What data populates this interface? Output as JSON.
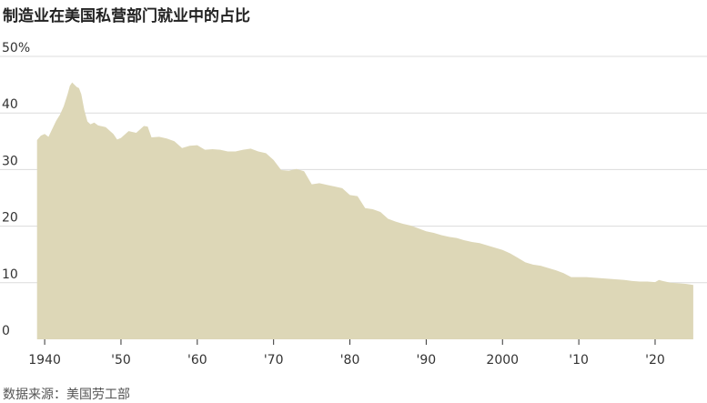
{
  "title": "制造业在美国私营部门就业中的占比",
  "source": "数据来源：美国劳工部",
  "chart_data": {
    "type": "area",
    "title": "制造业在美国私营部门就业中的占比",
    "xlabel": "",
    "ylabel": "",
    "xlim": [
      1938.2,
      2026.8
    ],
    "ylim": [
      0,
      50
    ],
    "grid": true,
    "legend": "none",
    "fill_color": "#ddd7b7",
    "y_tick_labels": [
      "0",
      "10",
      "20",
      "30",
      "40",
      "50%"
    ],
    "y_tick_values": [
      0,
      10,
      20,
      30,
      40,
      50
    ],
    "x_tick_labels": [
      "1940",
      "'50",
      "'60",
      "'70",
      "'80",
      "'90",
      "2000",
      "'10",
      "'20"
    ],
    "x_tick_values": [
      1940,
      1950,
      1960,
      1970,
      1980,
      1990,
      2000,
      2010,
      2020
    ],
    "series": [
      {
        "x": [
          1939.0,
          1939.5,
          1940.0,
          1940.5,
          1941.0,
          1941.5,
          1942.0,
          1942.5,
          1943.0,
          1943.3,
          1943.6,
          1943.9,
          1944.2,
          1944.5,
          1944.8,
          1945.2,
          1945.6,
          1946.0,
          1946.5,
          1947.0,
          1948.0,
          1949.0,
          1949.5,
          1950.0,
          1951.0,
          1952.0,
          1953.0,
          1953.5,
          1954.0,
          1955.0,
          1956.0,
          1957.0,
          1958.0,
          1959.0,
          1960.0,
          1961.0,
          1962.0,
          1963.0,
          1964.0,
          1965.0,
          1966.0,
          1967.0,
          1968.0,
          1969.0,
          1970.0,
          1971.0,
          1972.0,
          1973.0,
          1974.0,
          1975.0,
          1976.0,
          1977.0,
          1978.0,
          1979.0,
          1980.0,
          1981.0,
          1982.0,
          1983.0,
          1984.0,
          1985.0,
          1986.0,
          1987.0,
          1988.0,
          1989.0,
          1990.0,
          1991.0,
          1992.0,
          1993.0,
          1994.0,
          1995.0,
          1996.0,
          1997.0,
          1998.0,
          1999.0,
          2000.0,
          2001.0,
          2002.0,
          2003.0,
          2004.0,
          2005.0,
          2006.0,
          2007.0,
          2008.0,
          2009.0,
          2010.0,
          2011.0,
          2012.0,
          2013.0,
          2014.0,
          2015.0,
          2016.0,
          2017.0,
          2018.0,
          2019.0,
          2020.0,
          2020.5,
          2021.0,
          2022.0,
          2023.0,
          2024.0,
          2025.0
        ],
        "y": [
          35.2,
          36.0,
          36.3,
          35.8,
          37.2,
          38.6,
          39.7,
          41.2,
          43.3,
          44.8,
          45.4,
          45.0,
          44.6,
          44.4,
          43.3,
          40.5,
          38.5,
          38.0,
          38.3,
          37.8,
          37.5,
          36.3,
          35.3,
          35.6,
          36.8,
          36.5,
          37.7,
          37.6,
          35.7,
          35.8,
          35.5,
          35.0,
          33.8,
          34.2,
          34.3,
          33.5,
          33.6,
          33.5,
          33.2,
          33.2,
          33.5,
          33.7,
          33.2,
          32.9,
          31.7,
          29.9,
          29.8,
          30.1,
          29.7,
          27.4,
          27.6,
          27.3,
          27.0,
          26.7,
          25.5,
          25.3,
          23.2,
          23.0,
          22.5,
          21.3,
          20.8,
          20.4,
          20.1,
          19.6,
          19.1,
          18.8,
          18.4,
          18.1,
          17.9,
          17.5,
          17.2,
          17.0,
          16.6,
          16.2,
          15.8,
          15.2,
          14.4,
          13.6,
          13.2,
          13.0,
          12.6,
          12.2,
          11.7,
          11.0,
          11.0,
          11.0,
          10.9,
          10.8,
          10.7,
          10.6,
          10.5,
          10.3,
          10.2,
          10.2,
          10.1,
          10.5,
          10.3,
          10.0,
          9.9,
          9.8,
          9.6
        ]
      }
    ]
  }
}
